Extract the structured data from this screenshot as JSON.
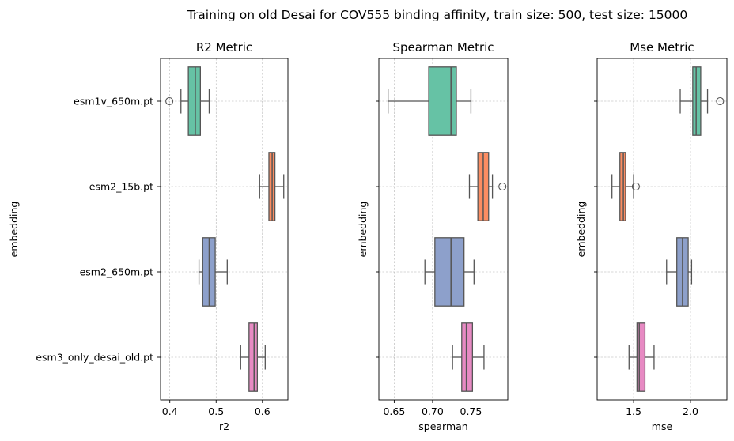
{
  "figure": {
    "suptitle": "Training on old Desai for COV555 binding affinity, train size: 500, test size: 15000"
  },
  "colors": {
    "esm1v_650m.pt": "#66c2a5",
    "esm2_15b.pt": "#fc8d62",
    "esm2_650m.pt": "#8da0cb",
    "esm3_only_desai_old.pt": "#e78ac3",
    "grid": "#b0b0b0",
    "whisker": "#555555"
  },
  "chart_data": [
    {
      "type": "box",
      "title": "R2 Metric",
      "xlabel": "r2",
      "ylabel": "embedding",
      "categories": [
        "esm1v_650m.pt",
        "esm2_15b.pt",
        "esm2_650m.pt",
        "esm3_only_desai_old.pt"
      ],
      "show_category_labels": true,
      "xlim": [
        0.38,
        0.655
      ],
      "xticks": [
        0.4,
        0.5,
        0.6
      ],
      "xtick_labels": [
        "0.4",
        "0.5",
        "0.6"
      ],
      "grid": true,
      "boxes": [
        {
          "category": "esm1v_650m.pt",
          "whisker_low": 0.424,
          "q1": 0.44,
          "median": 0.455,
          "q3": 0.466,
          "whisker_high": 0.485,
          "outliers": [
            0.399
          ]
        },
        {
          "category": "esm2_15b.pt",
          "whisker_low": 0.594,
          "q1": 0.614,
          "median": 0.621,
          "q3": 0.627,
          "whisker_high": 0.646,
          "outliers": []
        },
        {
          "category": "esm2_650m.pt",
          "whisker_low": 0.463,
          "q1": 0.471,
          "median": 0.485,
          "q3": 0.498,
          "whisker_high": 0.524,
          "outliers": []
        },
        {
          "category": "esm3_only_desai_old.pt",
          "whisker_low": 0.553,
          "q1": 0.571,
          "median": 0.582,
          "q3": 0.589,
          "whisker_high": 0.606,
          "outliers": []
        }
      ]
    },
    {
      "type": "box",
      "title": "Spearman Metric",
      "xlabel": "spearman",
      "ylabel": "embedding",
      "categories": [
        "esm1v_650m.pt",
        "esm2_15b.pt",
        "esm2_650m.pt",
        "esm3_only_desai_old.pt"
      ],
      "show_category_labels": false,
      "xlim": [
        0.63,
        0.798
      ],
      "xticks": [
        0.65,
        0.7,
        0.75
      ],
      "xtick_labels": [
        "0.65",
        "0.70",
        "0.75"
      ],
      "grid": true,
      "boxes": [
        {
          "category": "esm1v_650m.pt",
          "whisker_low": 0.642,
          "q1": 0.695,
          "median": 0.724,
          "q3": 0.731,
          "whisker_high": 0.75,
          "outliers": []
        },
        {
          "category": "esm2_15b.pt",
          "whisker_low": 0.748,
          "q1": 0.759,
          "median": 0.766,
          "q3": 0.773,
          "whisker_high": 0.778,
          "outliers": [
            0.791
          ]
        },
        {
          "category": "esm2_650m.pt",
          "whisker_low": 0.69,
          "q1": 0.703,
          "median": 0.724,
          "q3": 0.741,
          "whisker_high": 0.754,
          "outliers": []
        },
        {
          "category": "esm3_only_desai_old.pt",
          "whisker_low": 0.726,
          "q1": 0.738,
          "median": 0.744,
          "q3": 0.752,
          "whisker_high": 0.767,
          "outliers": []
        }
      ]
    },
    {
      "type": "box",
      "title": "Mse Metric",
      "xlabel": "mse",
      "ylabel": "embedding",
      "categories": [
        "esm1v_650m.pt",
        "esm2_15b.pt",
        "esm2_650m.pt",
        "esm3_only_desai_old.pt"
      ],
      "show_category_labels": false,
      "xlim": [
        1.18,
        2.32
      ],
      "xticks": [
        1.5,
        2.0
      ],
      "xtick_labels": [
        "1.5",
        "2.0"
      ],
      "grid": true,
      "boxes": [
        {
          "category": "esm1v_650m.pt",
          "whisker_low": 1.91,
          "q1": 2.02,
          "median": 2.05,
          "q3": 2.09,
          "whisker_high": 2.15,
          "outliers": [
            2.26
          ]
        },
        {
          "category": "esm2_15b.pt",
          "whisker_low": 1.31,
          "q1": 1.38,
          "median": 1.41,
          "q3": 1.43,
          "whisker_high": 1.5,
          "outliers": [
            1.52
          ]
        },
        {
          "category": "esm2_650m.pt",
          "whisker_low": 1.79,
          "q1": 1.88,
          "median": 1.93,
          "q3": 1.98,
          "whisker_high": 2.01,
          "outliers": []
        },
        {
          "category": "esm3_only_desai_old.pt",
          "whisker_low": 1.46,
          "q1": 1.53,
          "median": 1.55,
          "q3": 1.6,
          "whisker_high": 1.68,
          "outliers": []
        }
      ]
    }
  ]
}
